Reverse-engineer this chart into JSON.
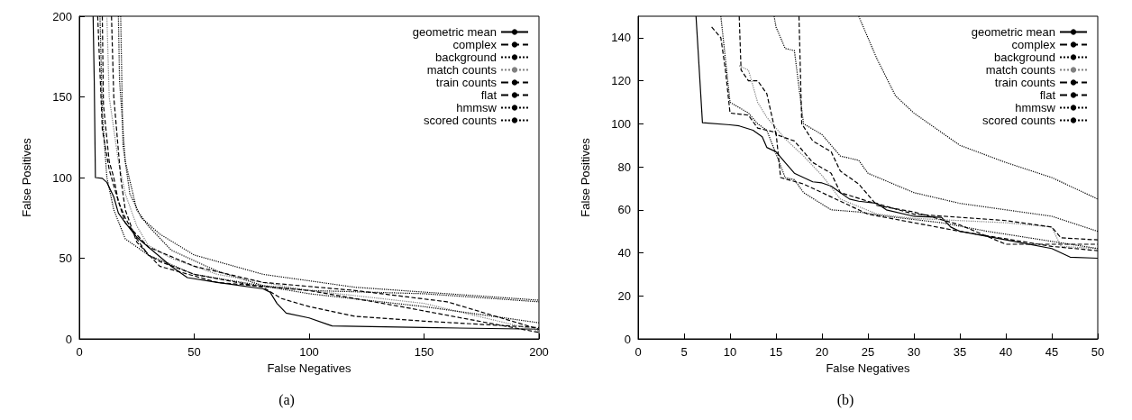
{
  "chart_data": [
    {
      "type": "line",
      "title": "(a)",
      "xlabel": "False Negatives",
      "ylabel": "False Positives",
      "xlim": [
        0,
        200
      ],
      "ylim": [
        0,
        200
      ],
      "xticks": [
        0,
        50,
        100,
        150,
        200
      ],
      "yticks": [
        0,
        50,
        100,
        150,
        200
      ],
      "grid": false,
      "legend": "top right",
      "marker": "none",
      "series": [
        {
          "name": "geometric mean",
          "color": "#000000",
          "line_style": "solid",
          "x": [
            6,
            6.5,
            7,
            10,
            12,
            15,
            17,
            20,
            25,
            30,
            35,
            40,
            47,
            60,
            80,
            83,
            86,
            90,
            100,
            108,
            110,
            150,
            200
          ],
          "values": [
            200,
            160,
            100,
            99.5,
            97,
            88,
            78,
            72,
            63,
            57,
            51,
            45,
            38,
            35,
            31,
            29,
            22,
            16,
            13,
            9,
            8,
            7,
            6
          ]
        },
        {
          "name": "complex",
          "color": "#000000",
          "line_style": "dashed",
          "x": [
            10,
            10.5,
            13,
            15,
            17,
            20,
            25,
            30,
            35,
            50,
            80,
            88,
            100,
            120,
            150,
            200
          ],
          "values": [
            200,
            145,
            110,
            100,
            85,
            75,
            62,
            52,
            48,
            40,
            32,
            25,
            20,
            14,
            11,
            7
          ]
        },
        {
          "name": "background",
          "color": "#000000",
          "line_style": "dotted",
          "x": [
            17,
            17.5,
            20,
            25,
            30,
            40,
            60,
            80,
            100,
            150,
            200
          ],
          "values": [
            200,
            160,
            110,
            80,
            70,
            55,
            42,
            33,
            30,
            28,
            23
          ]
        },
        {
          "name": "match counts",
          "color": "#808080",
          "line_style": "dotted",
          "x": [
            12,
            13,
            17,
            20,
            25,
            30,
            40,
            60,
            100,
            150,
            200
          ],
          "values": [
            200,
            150,
            110,
            90,
            70,
            58,
            50,
            40,
            30,
            22,
            5
          ]
        },
        {
          "name": "train counts",
          "color": "#000000",
          "line_style": "dashed",
          "x": [
            8,
            10,
            13,
            16,
            20,
            30,
            50,
            80,
            120,
            160,
            200
          ],
          "values": [
            200,
            130,
            105,
            90,
            72,
            57,
            45,
            35,
            30,
            23,
            6
          ]
        },
        {
          "name": "flat",
          "color": "#000000",
          "line_style": "dashed",
          "x": [
            14,
            15,
            18,
            20,
            25,
            35,
            60,
            100,
            140,
            200
          ],
          "values": [
            200,
            150,
            100,
            80,
            60,
            45,
            35,
            30,
            20,
            4
          ]
        },
        {
          "name": "hmmsw",
          "color": "#000000",
          "line_style": "dotted",
          "x": [
            18,
            19,
            22,
            27,
            35,
            50,
            80,
            120,
            160,
            200
          ],
          "values": [
            200,
            120,
            90,
            75,
            65,
            52,
            40,
            32,
            28,
            24
          ]
        },
        {
          "name": "scored counts",
          "color": "#000000",
          "line_style": "dotted",
          "x": [
            9,
            10,
            12,
            15,
            20,
            30,
            50,
            100,
            150,
            200
          ],
          "values": [
            200,
            140,
            100,
            80,
            62,
            52,
            40,
            28,
            20,
            10
          ]
        }
      ]
    },
    {
      "type": "line",
      "title": "(b)",
      "xlabel": "False Negatives",
      "ylabel": "False Positives",
      "xlim": [
        0,
        50
      ],
      "ylim": [
        0,
        150
      ],
      "xticks": [
        0,
        5,
        10,
        15,
        20,
        25,
        30,
        35,
        40,
        45,
        50
      ],
      "yticks": [
        0,
        20,
        40,
        60,
        80,
        100,
        120,
        140
      ],
      "grid": false,
      "legend": "top right",
      "marker": "none",
      "series": [
        {
          "name": "geometric mean",
          "color": "#000000",
          "line_style": "solid",
          "x": [
            6.3,
            7,
            10,
            11,
            12.5,
            13.5,
            14,
            15,
            16,
            17,
            18,
            19,
            20,
            21,
            22,
            23,
            24,
            26,
            27,
            30,
            33,
            34,
            35,
            40,
            45,
            47,
            50
          ],
          "values": [
            150,
            100.5,
            99.5,
            99,
            97,
            94,
            89,
            87,
            82,
            77,
            75,
            73,
            72.5,
            71,
            68,
            65,
            64,
            63,
            60,
            57,
            56.5,
            52,
            50,
            46,
            42,
            38,
            37.5
          ]
        },
        {
          "name": "complex",
          "color": "#000000",
          "line_style": "dashed",
          "x": [
            8,
            9,
            9.5,
            10,
            12,
            13,
            15,
            15.5,
            18,
            25,
            35,
            45,
            50
          ],
          "values": [
            145,
            140,
            125,
            105,
            104,
            98,
            96,
            75,
            72,
            58,
            50,
            43,
            41
          ]
        },
        {
          "name": "background",
          "color": "#000000",
          "line_style": "dotted",
          "x": [
            24,
            26,
            28,
            30,
            35,
            40,
            45,
            50
          ],
          "values": [
            150,
            130,
            113,
            105,
            90,
            82,
            75,
            65
          ]
        },
        {
          "name": "match counts",
          "color": "#808080",
          "line_style": "dotted",
          "x": [
            11,
            12,
            13,
            14,
            16,
            18,
            20,
            22,
            26,
            30,
            40,
            45,
            46,
            50
          ],
          "values": [
            127,
            125,
            110,
            103,
            93,
            85,
            76,
            65,
            58,
            56,
            54,
            52,
            43,
            42
          ]
        },
        {
          "name": "train counts",
          "color": "#000000",
          "line_style": "dashed",
          "x": [
            11,
            11.2,
            12,
            13,
            14,
            15,
            17,
            19,
            21,
            22,
            25,
            30,
            40,
            45,
            46,
            50
          ],
          "values": [
            150,
            125,
            120,
            120,
            114,
            95,
            92,
            82,
            77,
            68,
            64,
            58,
            55,
            52,
            47,
            46
          ]
        },
        {
          "name": "flat",
          "color": "#000000",
          "line_style": "dashed",
          "x": [
            17.5,
            17.8,
            19,
            21,
            22,
            24,
            26,
            30,
            35,
            40,
            50
          ],
          "values": [
            150,
            100,
            92,
            87,
            78,
            72,
            62,
            59,
            53,
            44,
            44
          ]
        },
        {
          "name": "hmmsw",
          "color": "#000000",
          "line_style": "dotted",
          "x": [
            14.8,
            15,
            16,
            17,
            18,
            20,
            22,
            24,
            25,
            30,
            35,
            40,
            45,
            50
          ],
          "values": [
            150,
            145,
            135,
            134,
            100,
            95,
            85,
            83,
            77,
            68,
            63,
            60,
            57,
            50
          ]
        },
        {
          "name": "scored counts",
          "color": "#000000",
          "line_style": "dotted",
          "x": [
            9,
            10,
            12,
            13,
            14,
            16,
            17,
            18,
            21,
            24,
            27,
            33,
            38,
            50
          ],
          "values": [
            150,
            110,
            105,
            100,
            97,
            75,
            74,
            68,
            60,
            59,
            57,
            54,
            50,
            42
          ]
        }
      ]
    }
  ]
}
